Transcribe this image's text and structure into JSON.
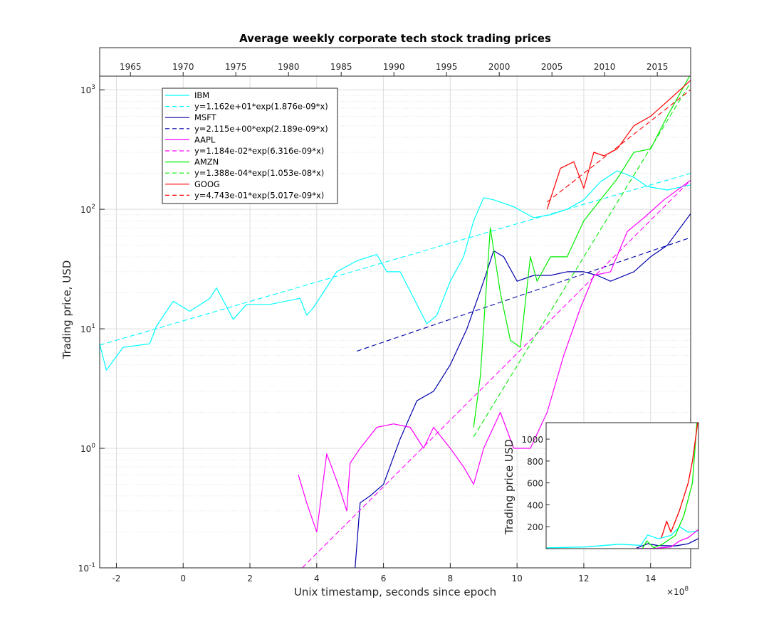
{
  "chart_data": [
    {
      "type": "line",
      "title": "Average weekly corporate tech stock trading prices",
      "xlabel": "Unix timestamp, seconds since epoch",
      "x_exponent_label": "×10",
      "x_exponent_power": "8",
      "ylabel": "Trading price, USD",
      "y_scale": "log",
      "xlim": [
        -2.5,
        15.2
      ],
      "ylim": [
        0.1,
        1300
      ],
      "x_ticks": [
        -2,
        0,
        2,
        4,
        6,
        8,
        10,
        12,
        14
      ],
      "y_ticks": [
        {
          "value": 0.1,
          "base": "10",
          "exp": "-1"
        },
        {
          "value": 1,
          "base": "10",
          "exp": "0"
        },
        {
          "value": 10,
          "base": "10",
          "exp": "1"
        },
        {
          "value": 100,
          "base": "10",
          "exp": "2"
        },
        {
          "value": 1000,
          "base": "10",
          "exp": "3"
        }
      ],
      "top_axis_year_ticks": [
        "1965",
        "1970",
        "1975",
        "1980",
        "1985",
        "1990",
        "1995",
        "2000",
        "2005",
        "2010",
        "2015"
      ],
      "grid": true,
      "legend_position": "top-left",
      "series": [
        {
          "name": "IBM",
          "color": "#00ffff",
          "style": "solid",
          "x": [
            -2.5,
            -2.3,
            -1.8,
            -1.0,
            -0.8,
            -0.3,
            0.2,
            0.8,
            1.0,
            1.5,
            1.9,
            2.6,
            3.5,
            3.7,
            3.9,
            4.6,
            5.2,
            5.8,
            6.1,
            6.5,
            7.3,
            7.6,
            8.0,
            8.4,
            8.7,
            9.0,
            9.3,
            9.9,
            10.5,
            11.0,
            11.5,
            12.0,
            12.5,
            13.0,
            13.5,
            13.9,
            14.5,
            15.2
          ],
          "y": [
            7.5,
            4.5,
            7.0,
            7.5,
            10.5,
            17.0,
            14.0,
            18.0,
            22.0,
            12.0,
            16.0,
            16.0,
            18.0,
            13.0,
            15.0,
            30.0,
            37.0,
            42.0,
            30.0,
            30.0,
            11.0,
            13.0,
            25.0,
            40.0,
            80.0,
            125.0,
            120.0,
            105.0,
            85.0,
            90.0,
            100.0,
            120.0,
            170.0,
            210.0,
            185.0,
            155.0,
            145.0,
            160.0
          ]
        },
        {
          "name": "y=1.162e+01*exp(1.876e-09*x)",
          "color": "#00ffff",
          "style": "dashed",
          "x": [
            -2.5,
            15.2
          ],
          "y": [
            7.3,
            200.0
          ]
        },
        {
          "name": "MSFT",
          "color": "#0000aa",
          "style": "solid",
          "x": [
            5.15,
            5.3,
            5.6,
            6.0,
            6.5,
            7.0,
            7.5,
            8.0,
            8.5,
            9.0,
            9.3,
            9.6,
            10.0,
            10.5,
            11.0,
            11.5,
            12.0,
            12.4,
            12.8,
            13.5,
            14.0,
            14.5,
            15.2
          ],
          "y": [
            0.1,
            0.35,
            0.4,
            0.5,
            1.2,
            2.5,
            3.0,
            5.0,
            10.0,
            25.0,
            45.0,
            40.0,
            25.0,
            28.0,
            28.0,
            30.0,
            30.0,
            28.0,
            25.0,
            30.0,
            40.0,
            50.0,
            92.0
          ]
        },
        {
          "name": "y=2.115e+00*exp(2.189e-09*x)",
          "color": "#0000aa",
          "style": "dashed",
          "x": [
            5.2,
            15.2
          ],
          "y": [
            6.5,
            58.0
          ]
        },
        {
          "name": "AAPL",
          "color": "#ff00ff",
          "style": "solid",
          "x": [
            3.45,
            3.7,
            4.0,
            4.3,
            4.7,
            4.9,
            5.0,
            5.3,
            5.8,
            6.3,
            6.8,
            7.2,
            7.5,
            8.0,
            8.4,
            8.7,
            9.0,
            9.5,
            9.9,
            10.4,
            10.9,
            11.4,
            11.9,
            12.3,
            12.8,
            13.3,
            13.8,
            14.4,
            15.2
          ],
          "y": [
            0.6,
            0.35,
            0.2,
            0.9,
            0.45,
            0.3,
            0.75,
            1.0,
            1.5,
            1.6,
            1.5,
            1.0,
            1.5,
            1.0,
            0.7,
            0.5,
            1.0,
            2.0,
            1.0,
            1.0,
            2.0,
            6.0,
            15.0,
            28.0,
            30.0,
            65.0,
            85.0,
            120.0,
            175.0
          ]
        },
        {
          "name": "y=1.184e-02*exp(6.316e-09*x)",
          "color": "#ff00ff",
          "style": "dashed",
          "x": [
            3.4,
            15.2
          ],
          "y": [
            0.09,
            175.0
          ]
        },
        {
          "name": "AMZN",
          "color": "#00ee00",
          "style": "solid",
          "x": [
            8.7,
            8.9,
            9.2,
            9.5,
            9.8,
            10.1,
            10.4,
            10.6,
            11.0,
            11.5,
            12.0,
            12.5,
            13.0,
            13.5,
            14.0,
            14.5,
            15.2
          ],
          "y": [
            1.5,
            4.0,
            70.0,
            20.0,
            8.0,
            7.0,
            40.0,
            25.0,
            40.0,
            40.0,
            80.0,
            120.0,
            180.0,
            300.0,
            320.0,
            600.0,
            1350.0
          ]
        },
        {
          "name": "y=1.388e-04*exp(1.053e-08*x)",
          "color": "#00ee00",
          "style": "dashed",
          "x": [
            8.7,
            15.2
          ],
          "y": [
            1.25,
            1150.0
          ]
        },
        {
          "name": "GOOG",
          "color": "#ff0000",
          "style": "solid",
          "x": [
            10.9,
            11.3,
            11.7,
            12.0,
            12.3,
            12.6,
            13.0,
            13.5,
            14.0,
            14.5,
            15.2
          ],
          "y": [
            100.0,
            220.0,
            250.0,
            150.0,
            300.0,
            280.0,
            320.0,
            500.0,
            600.0,
            800.0,
            1200.0
          ]
        },
        {
          "name": "y=4.743e-01*exp(5.017e-09*x)",
          "color": "#ff0000",
          "style": "dashed",
          "x": [
            10.9,
            15.2
          ],
          "y": [
            115.0,
            1000.0
          ]
        }
      ]
    },
    {
      "type": "line",
      "ylabel": "Trading price USD",
      "y_scale": "linear",
      "xlim": [
        -2.5,
        15.2
      ],
      "ylim": [
        0,
        1150
      ],
      "y_ticks": [
        200,
        400,
        600,
        800,
        1000
      ],
      "series": [
        {
          "color": "#00ffff",
          "x": [
            -2.5,
            2.0,
            6.0,
            8.5,
            9.3,
            10.5,
            12.0,
            13.0,
            14.0,
            15.2
          ],
          "y": [
            7,
            15,
            40,
            30,
            125,
            90,
            120,
            200,
            150,
            160
          ]
        },
        {
          "color": "#0000aa",
          "x": [
            8.0,
            9.3,
            10.5,
            12.5,
            14.0,
            15.2
          ],
          "y": [
            5,
            45,
            28,
            25,
            45,
            92
          ]
        },
        {
          "color": "#ff00ff",
          "x": [
            8.0,
            10.0,
            12.0,
            13.0,
            14.0,
            15.2
          ],
          "y": [
            1,
            2,
            15,
            70,
            100,
            175
          ]
        },
        {
          "color": "#00ee00",
          "x": [
            8.7,
            9.2,
            10.0,
            11.0,
            12.5,
            13.5,
            14.5,
            15.2
          ],
          "y": [
            2,
            70,
            8,
            40,
            120,
            300,
            600,
            1350
          ]
        },
        {
          "color": "#ff0000",
          "x": [
            10.9,
            11.5,
            12.0,
            13.0,
            14.0,
            14.5,
            15.2
          ],
          "y": [
            100,
            250,
            150,
            350,
            600,
            800,
            1200
          ]
        }
      ]
    }
  ]
}
